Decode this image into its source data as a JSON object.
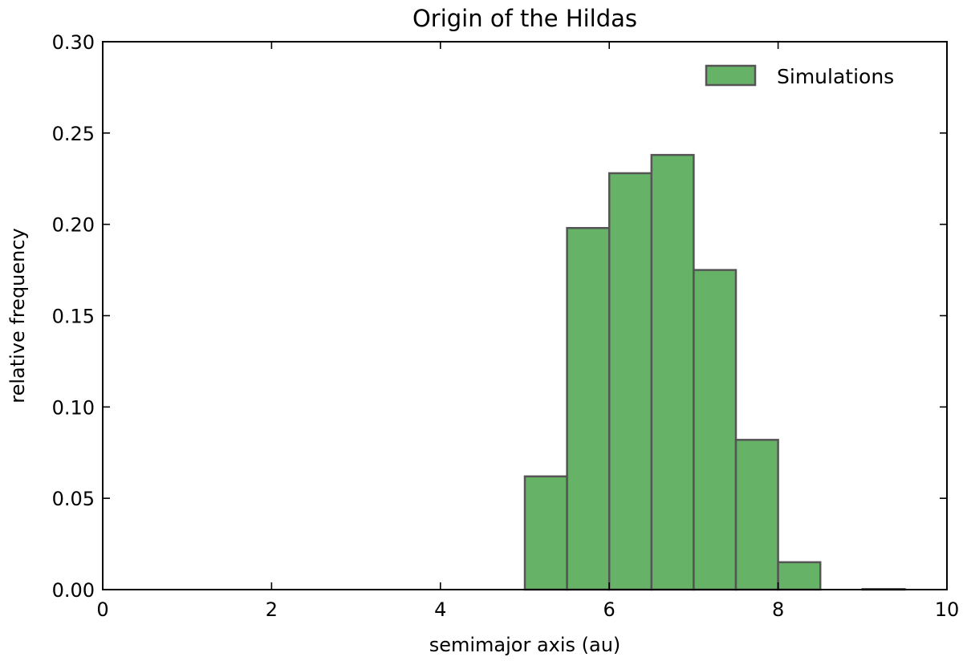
{
  "chart_data": {
    "type": "bar",
    "title": "Origin of the Hildas",
    "xlabel": "semimajor axis (au)",
    "ylabel": "relative frequency",
    "xlim": [
      0,
      10
    ],
    "ylim": [
      0,
      0.3
    ],
    "x_ticks": [
      0,
      2,
      4,
      6,
      8,
      10
    ],
    "y_ticks": [
      0.0,
      0.05,
      0.1,
      0.15,
      0.2,
      0.25,
      0.3
    ],
    "x_tick_labels": [
      "0",
      "2",
      "4",
      "6",
      "8",
      "10"
    ],
    "y_tick_labels": [
      "0.00",
      "0.05",
      "0.10",
      "0.15",
      "0.20",
      "0.25",
      "0.30"
    ],
    "grid": false,
    "legend_position": "top-right",
    "series": [
      {
        "name": "Simulations",
        "color": "#66b266",
        "edge_color": "#555555",
        "bins": [
          {
            "x0": 5.0,
            "x1": 5.5,
            "value": 0.062
          },
          {
            "x0": 5.5,
            "x1": 6.0,
            "value": 0.198
          },
          {
            "x0": 6.0,
            "x1": 6.5,
            "value": 0.228
          },
          {
            "x0": 6.5,
            "x1": 7.0,
            "value": 0.238
          },
          {
            "x0": 7.0,
            "x1": 7.5,
            "value": 0.175
          },
          {
            "x0": 7.5,
            "x1": 8.0,
            "value": 0.082
          },
          {
            "x0": 8.0,
            "x1": 8.5,
            "value": 0.015
          },
          {
            "x0": 8.5,
            "x1": 9.0,
            "value": 0.0
          },
          {
            "x0": 9.0,
            "x1": 9.5,
            "value": 0.0003
          }
        ]
      }
    ]
  }
}
